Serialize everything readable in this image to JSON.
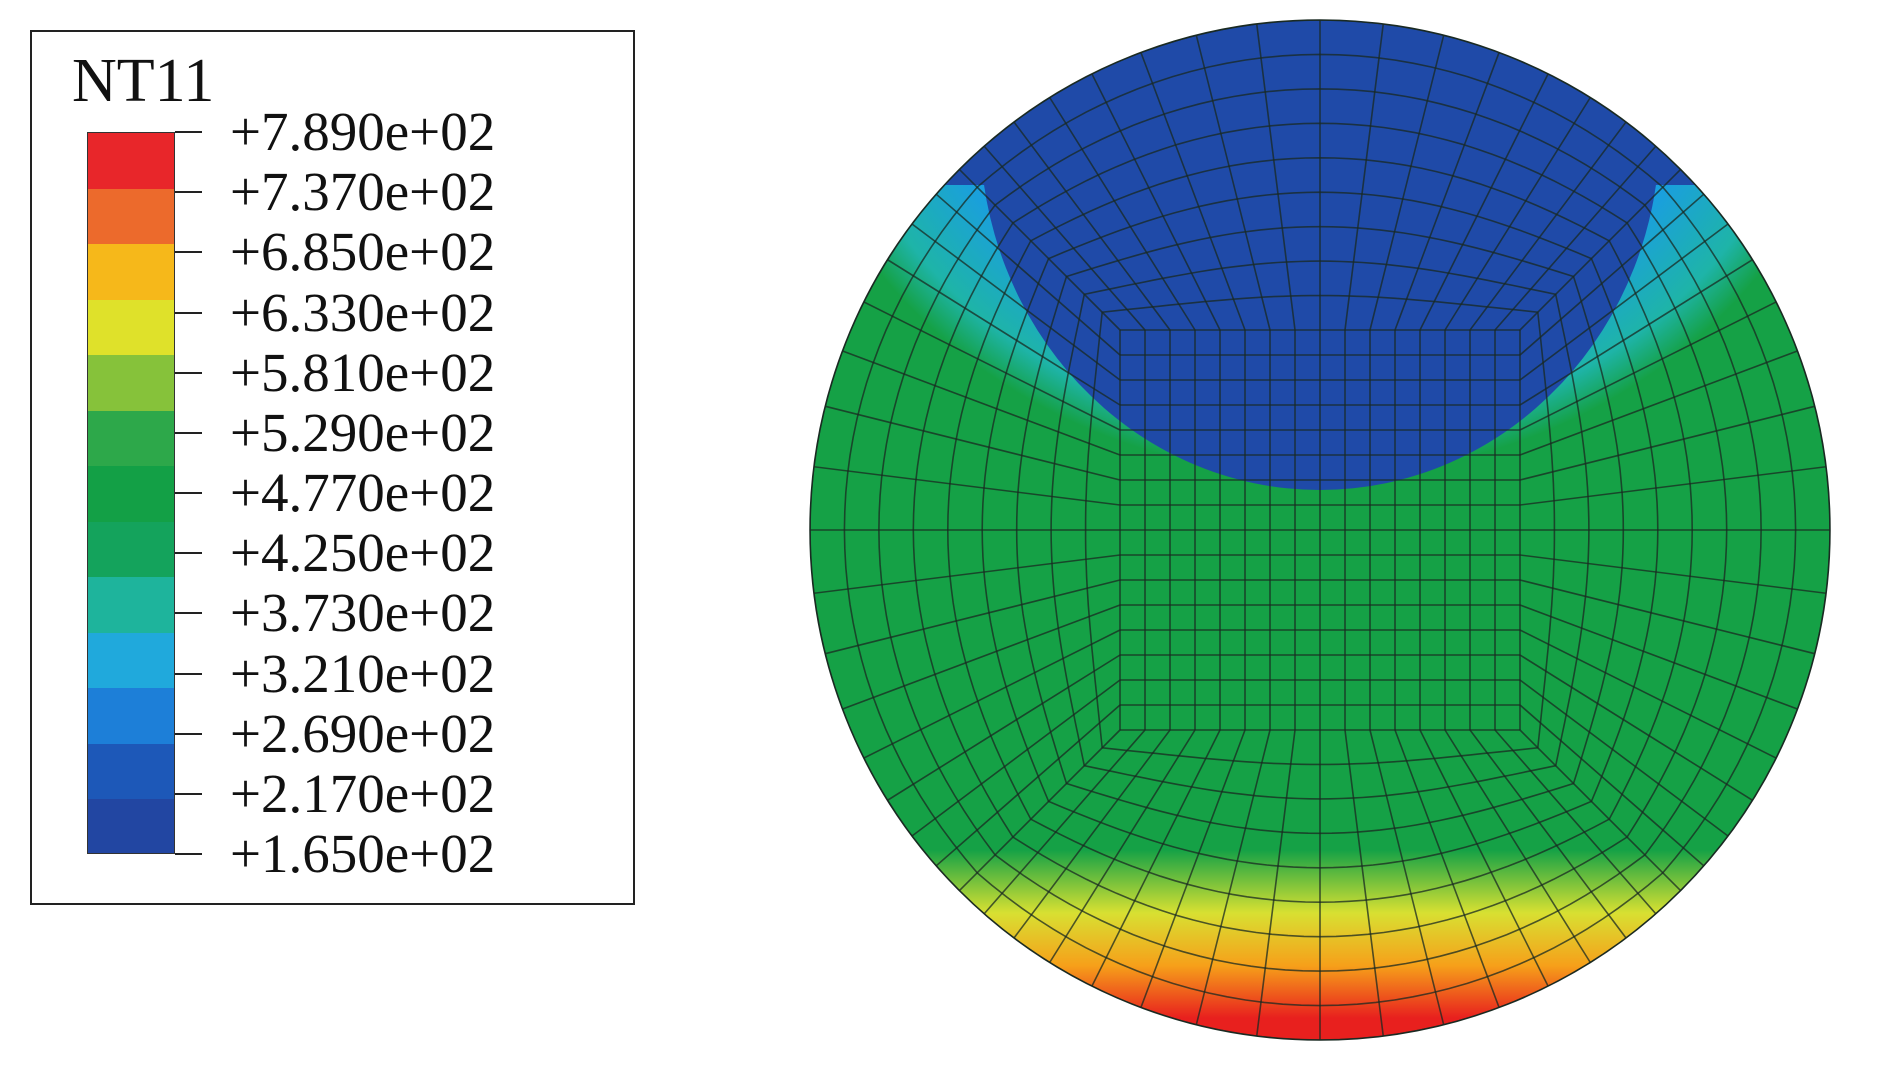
{
  "legend": {
    "title": "NT11",
    "labels": [
      "+7.890e+02",
      "+7.370e+02",
      "+6.850e+02",
      "+6.330e+02",
      "+5.810e+02",
      "+5.290e+02",
      "+4.770e+02",
      "+4.250e+02",
      "+3.730e+02",
      "+3.210e+02",
      "+2.690e+02",
      "+2.170e+02",
      "+1.650e+02"
    ],
    "band_colors": [
      "#e8262a",
      "#ec6a2c",
      "#f6b81a",
      "#dfe12a",
      "#86c23a",
      "#2da84a",
      "#13a046",
      "#14a35c",
      "#1eb49c",
      "#20a9dc",
      "#1d7fd8",
      "#1d58b8",
      "#2246a2"
    ]
  },
  "contour": {
    "colors": {
      "cold": "#1f4aa8",
      "cool": "#1a9ee0",
      "cyan": "#1eb4a8",
      "warm": "#15a146",
      "yellow": "#d8e032",
      "orange": "#f6a01a",
      "hot": "#e8201e",
      "mesh": "#1a2a22"
    }
  }
}
